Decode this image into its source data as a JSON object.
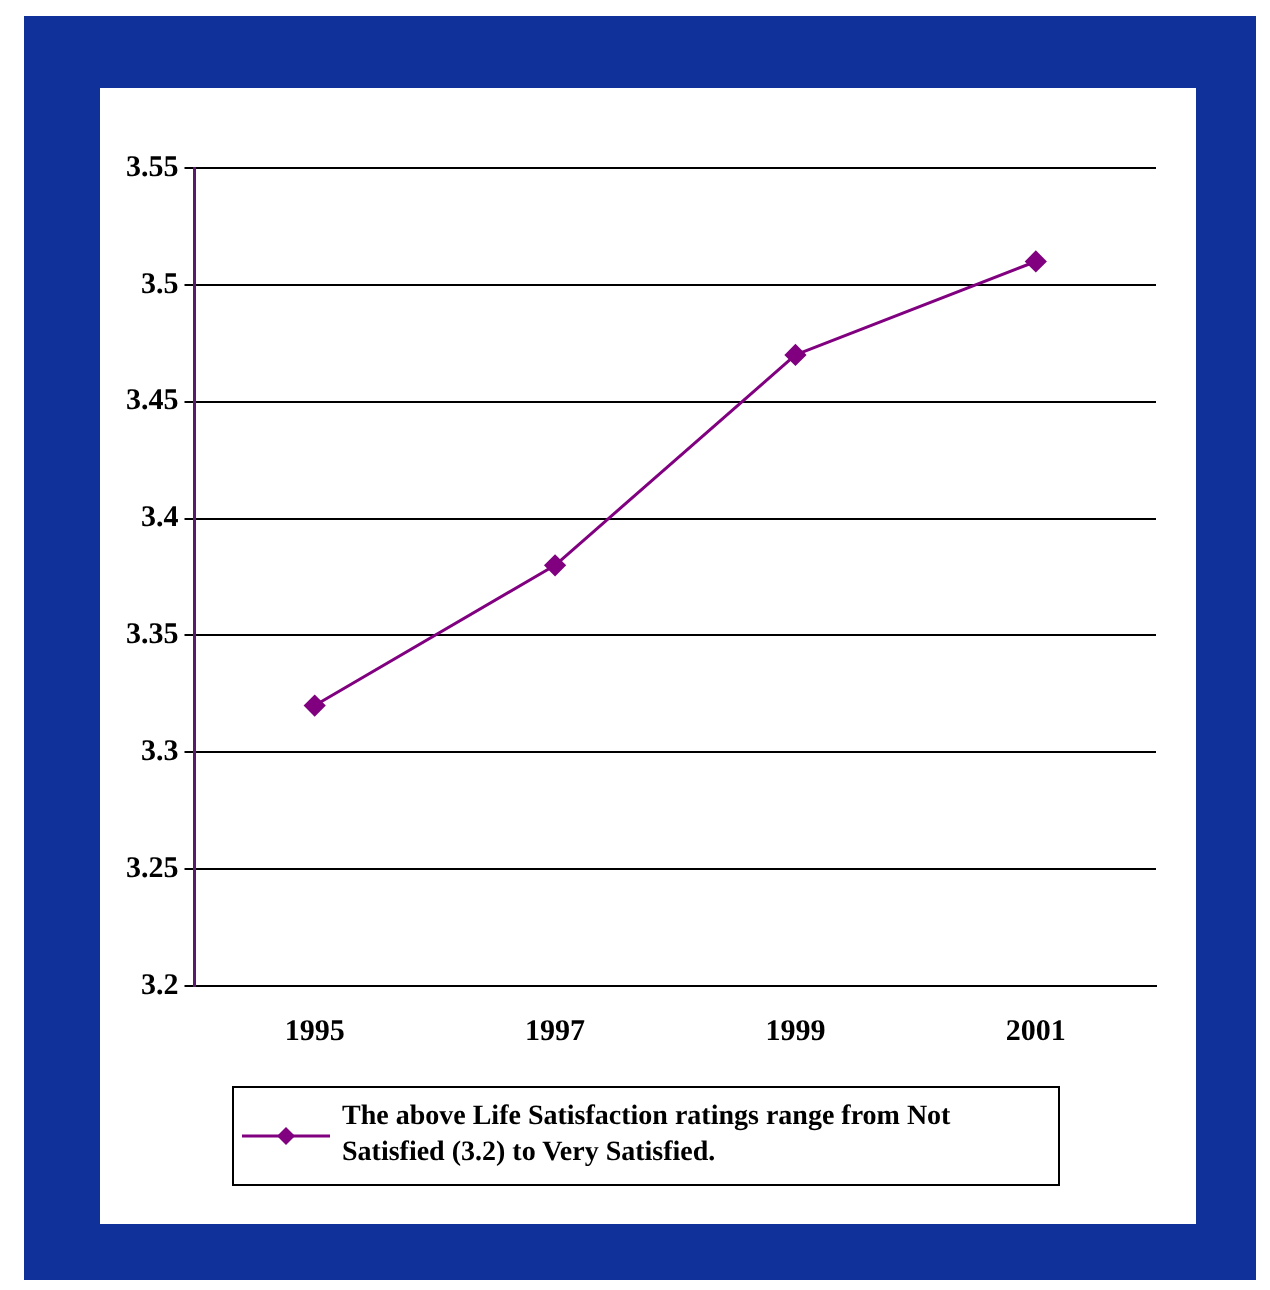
{
  "chart_data": {
    "type": "line",
    "categories": [
      "1995",
      "1997",
      "1999",
      "2001"
    ],
    "series": [
      {
        "name": "The above Life Satisfaction ratings range from Not Satisfied (3.2) to Very Satisfied.",
        "color": "#800080",
        "values": [
          3.32,
          3.38,
          3.47,
          3.51
        ]
      }
    ],
    "ylim": [
      3.2,
      3.55
    ],
    "yticks": [
      3.2,
      3.25,
      3.3,
      3.35,
      3.4,
      3.45,
      3.5,
      3.55
    ],
    "grid": "y",
    "legend": "bottom",
    "marker": "diamond",
    "line_style": "solid"
  }
}
